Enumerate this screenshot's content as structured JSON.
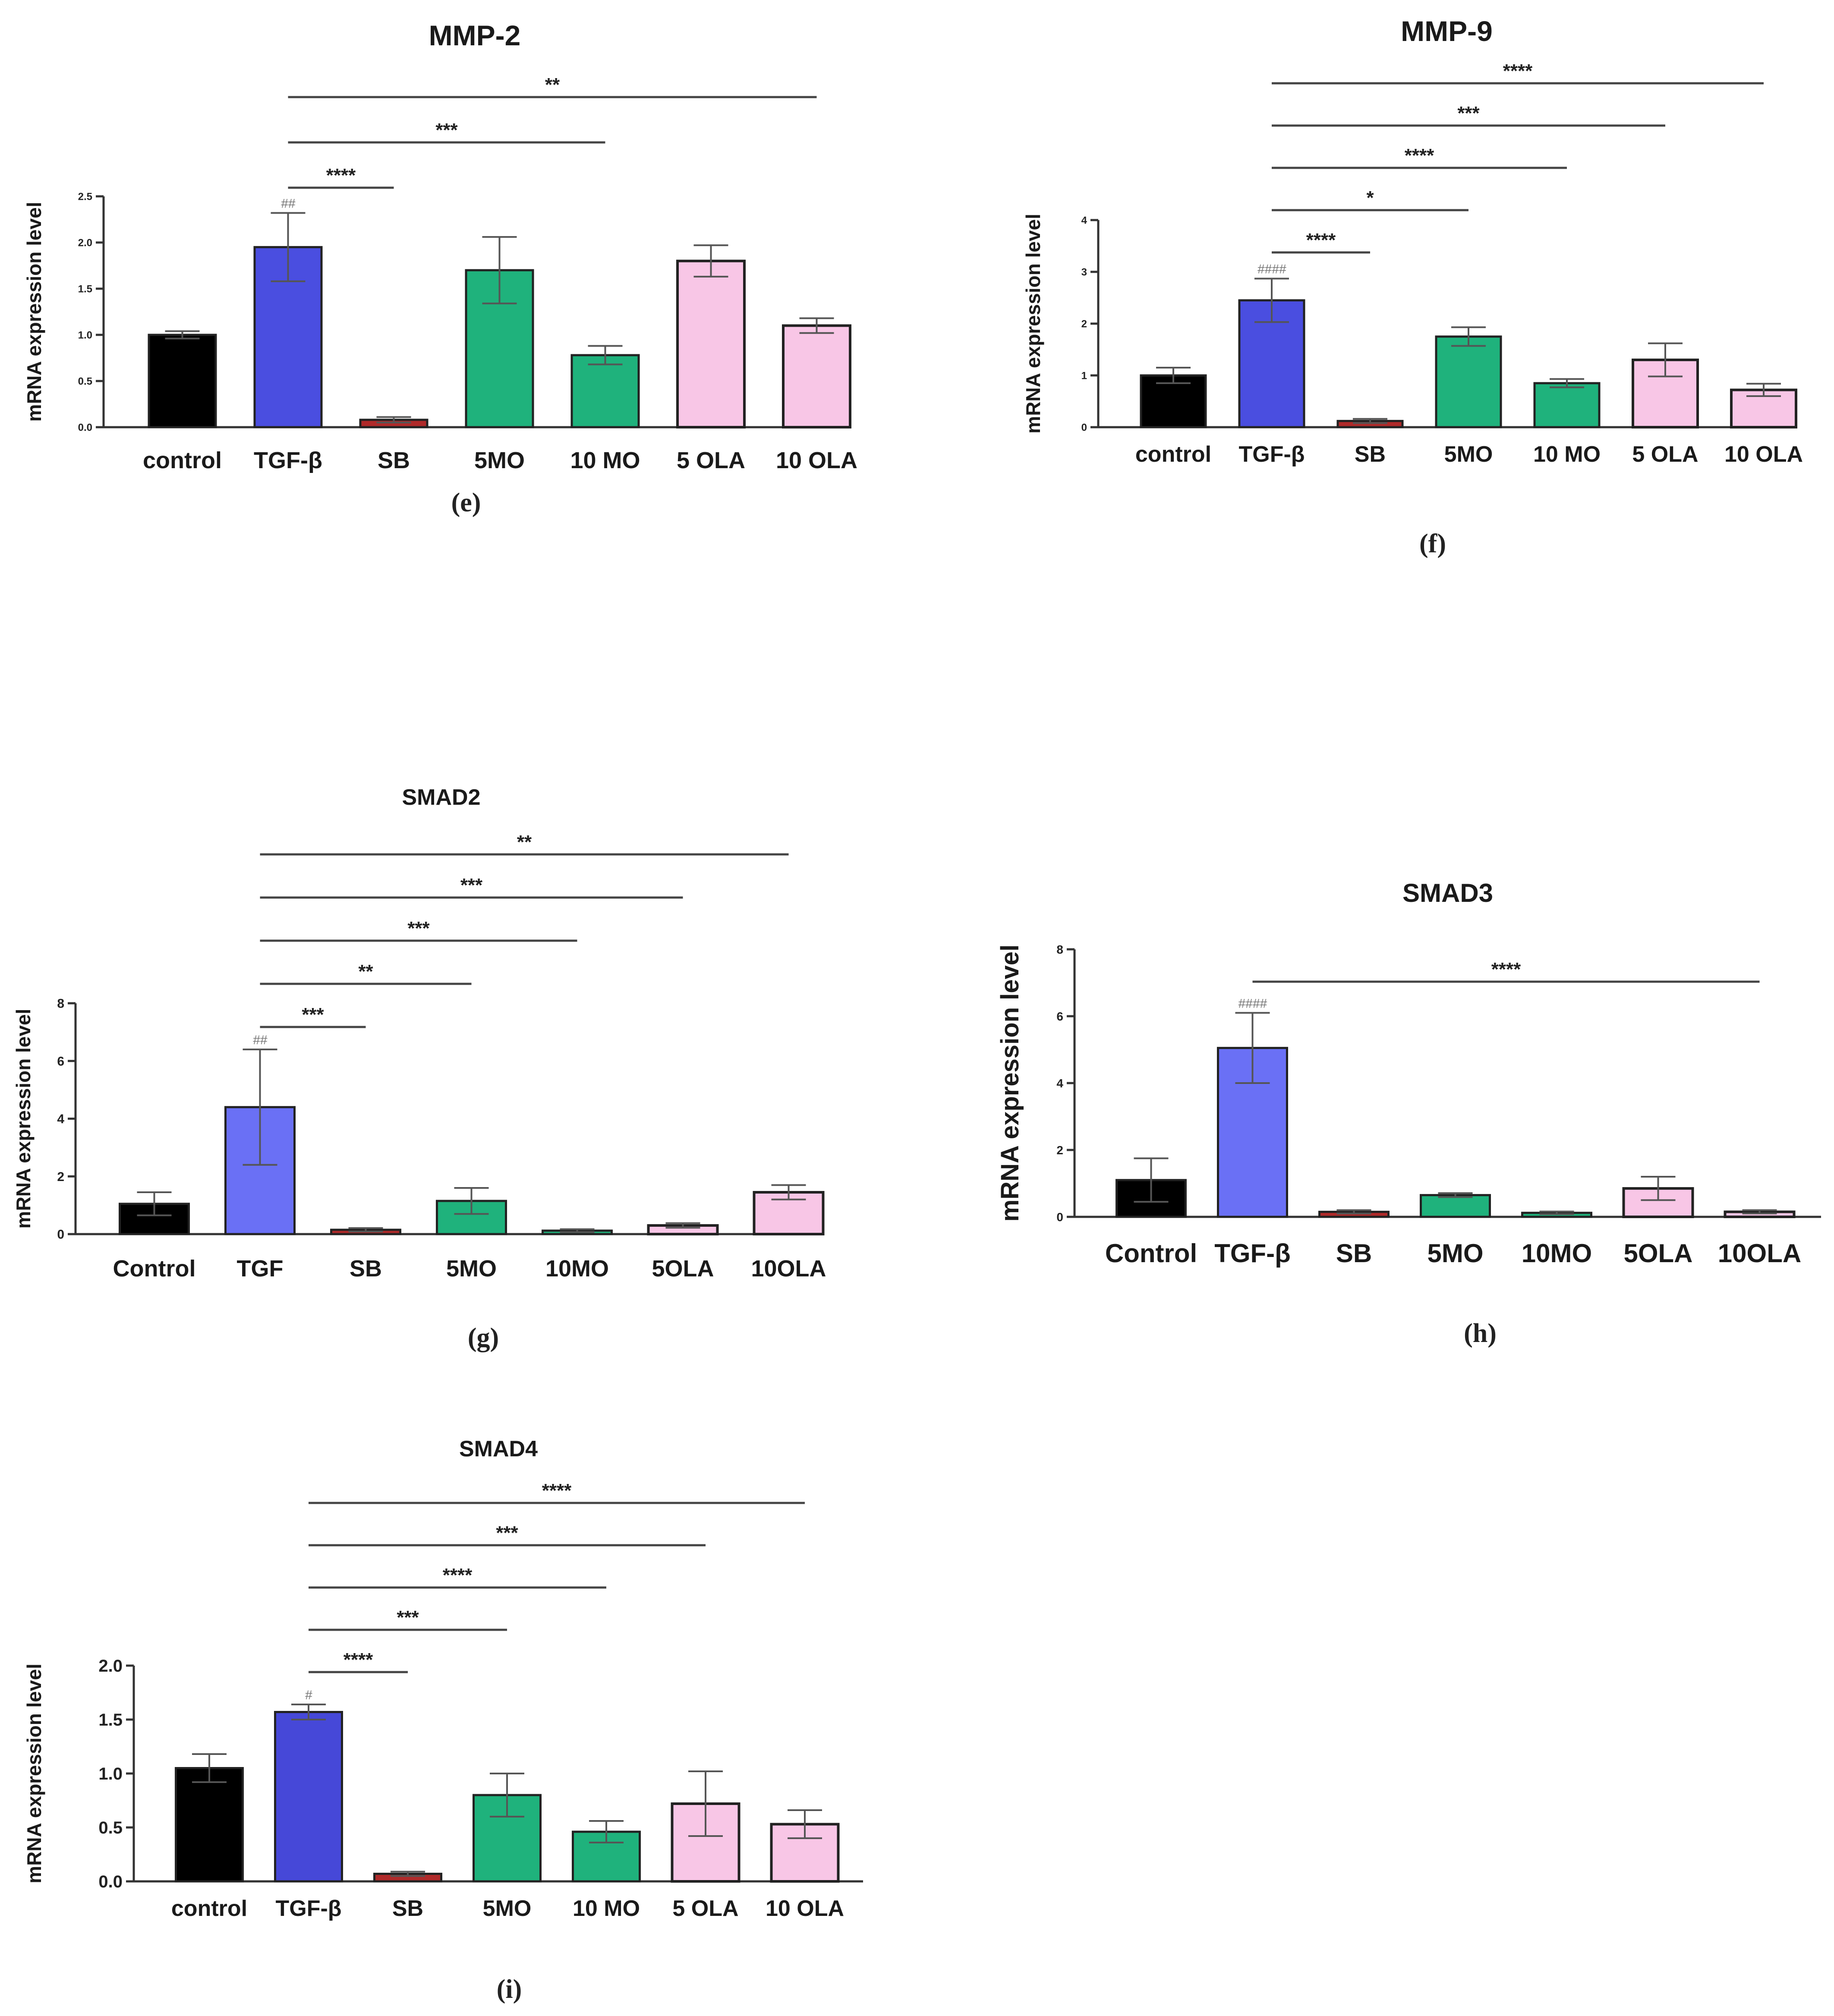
{
  "chart_data": [
    {
      "id": "e",
      "panel_label": "(e)",
      "type": "bar",
      "title": "MMP-2",
      "ylabel": "mRNA expression level",
      "ylim": [
        0,
        2.5
      ],
      "yticks": [
        "0.0",
        "0.5",
        "1.0",
        "1.5",
        "2.0",
        "2.5"
      ],
      "categories": [
        "control",
        "TGF-β",
        "SB",
        "5MO",
        "10 MO",
        "5 OLA",
        "10 OLA"
      ],
      "values": [
        1.0,
        1.95,
        0.08,
        1.7,
        0.78,
        1.8,
        1.1
      ],
      "errors": [
        0.04,
        0.37,
        0.03,
        0.36,
        0.1,
        0.17,
        0.08
      ],
      "colors": [
        "#000000",
        "#4a4ee0",
        "#b02a2a",
        "#1fb27c",
        "#1fb27c",
        "#f8c6e6",
        "#f8c6e6"
      ],
      "hash_label": "##",
      "comparisons": [
        {
          "to": 2,
          "label": "****"
        },
        {
          "to": 4,
          "label": "***"
        },
        {
          "to": 6,
          "label": "**"
        }
      ]
    },
    {
      "id": "f",
      "panel_label": "(f)",
      "type": "bar",
      "title": "MMP-9",
      "ylabel": "mRNA expression level",
      "ylim": [
        0,
        4
      ],
      "yticks": [
        "0",
        "1",
        "2",
        "3",
        "4"
      ],
      "categories": [
        "control",
        "TGF-β",
        "SB",
        "5MO",
        "10 MO",
        "5 OLA",
        "10 OLA"
      ],
      "values": [
        1.0,
        2.45,
        0.12,
        1.75,
        0.85,
        1.3,
        0.72
      ],
      "errors": [
        0.15,
        0.42,
        0.04,
        0.18,
        0.08,
        0.32,
        0.12
      ],
      "colors": [
        "#000000",
        "#4a4ee0",
        "#b02a2a",
        "#1fb27c",
        "#1fb27c",
        "#f8c6e6",
        "#f8c6e6"
      ],
      "hash_label": "####",
      "comparisons": [
        {
          "to": 2,
          "label": "****"
        },
        {
          "to": 3,
          "label": "*"
        },
        {
          "to": 4,
          "label": "****"
        },
        {
          "to": 5,
          "label": "***"
        },
        {
          "to": 6,
          "label": "****"
        }
      ]
    },
    {
      "id": "g",
      "panel_label": "(g)",
      "type": "bar",
      "title": "SMAD2",
      "ylabel": "mRNA expression level",
      "ylim": [
        0,
        8
      ],
      "yticks": [
        "0",
        "2",
        "4",
        "6",
        "8"
      ],
      "categories": [
        "Control",
        "TGF",
        "SB",
        "5MO",
        "10MO",
        "5OLA",
        "10OLA"
      ],
      "values": [
        1.05,
        4.4,
        0.15,
        1.15,
        0.12,
        0.3,
        1.45
      ],
      "errors": [
        0.4,
        2.0,
        0.06,
        0.45,
        0.05,
        0.08,
        0.25
      ],
      "colors": [
        "#000000",
        "#6a70f5",
        "#b02a2a",
        "#1fb27c",
        "#1fb27c",
        "#f8c6e6",
        "#f8c6e6"
      ],
      "hash_label": "##",
      "comparisons": [
        {
          "to": 2,
          "label": "***"
        },
        {
          "to": 3,
          "label": "**"
        },
        {
          "to": 4,
          "label": "***"
        },
        {
          "to": 5,
          "label": "***"
        },
        {
          "to": 6,
          "label": "**"
        }
      ]
    },
    {
      "id": "h",
      "panel_label": "(h)",
      "type": "bar",
      "title": "SMAD3",
      "ylabel": "mRNA expression level",
      "ylim": [
        0,
        8
      ],
      "yticks": [
        "0",
        "2",
        "4",
        "6",
        "8"
      ],
      "categories": [
        "Control",
        "TGF-β",
        "SB",
        "5MO",
        "10MO",
        "5OLA",
        "10OLA"
      ],
      "values": [
        1.1,
        5.05,
        0.15,
        0.65,
        0.12,
        0.85,
        0.15
      ],
      "errors": [
        0.65,
        1.05,
        0.05,
        0.06,
        0.04,
        0.35,
        0.05
      ],
      "colors": [
        "#000000",
        "#6a70f5",
        "#b02a2a",
        "#1fb27c",
        "#1fb27c",
        "#f8c6e6",
        "#f8c6e6"
      ],
      "hash_label": "####",
      "comparisons": [
        {
          "to": 6,
          "label": "****"
        }
      ]
    },
    {
      "id": "i",
      "panel_label": "(i)",
      "type": "bar",
      "title": "SMAD4",
      "ylabel": "mRNA expression level",
      "ylim": [
        0,
        2.0
      ],
      "yticks": [
        "0.0",
        "0.5",
        "1.0",
        "1.5",
        "2.0"
      ],
      "categories": [
        "control",
        "TGF-β",
        "SB",
        "5MO",
        "10 MO",
        "5 OLA",
        "10 OLA"
      ],
      "values": [
        1.05,
        1.57,
        0.07,
        0.8,
        0.46,
        0.72,
        0.53
      ],
      "errors": [
        0.13,
        0.07,
        0.02,
        0.2,
        0.1,
        0.3,
        0.13
      ],
      "colors": [
        "#000000",
        "#4648d8",
        "#b02a2a",
        "#1fb27c",
        "#1fb27c",
        "#f8c6e6",
        "#f8c6e6"
      ],
      "hash_label": "#",
      "comparisons": [
        {
          "to": 2,
          "label": "****"
        },
        {
          "to": 3,
          "label": "***"
        },
        {
          "to": 4,
          "label": "****"
        },
        {
          "to": 5,
          "label": "***"
        },
        {
          "to": 6,
          "label": "****"
        }
      ]
    }
  ]
}
